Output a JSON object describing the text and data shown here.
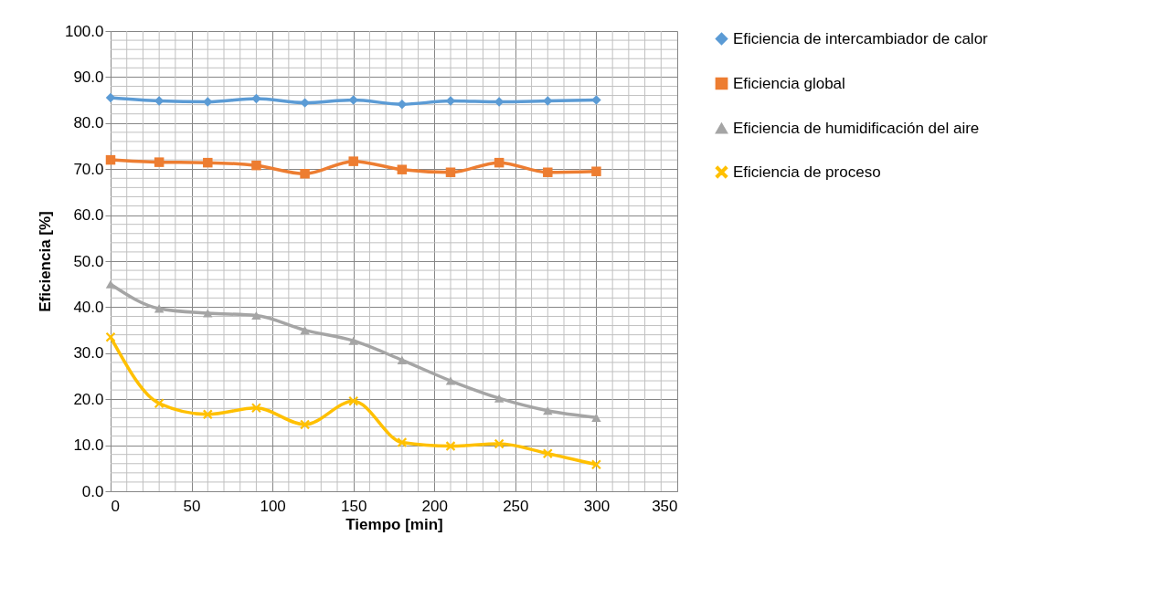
{
  "chart_data": {
    "type": "line",
    "xlabel": "Tiempo [min]",
    "ylabel": "Eficiencia [%]",
    "x": [
      0,
      30,
      60,
      90,
      120,
      150,
      180,
      210,
      240,
      270,
      300
    ],
    "series": [
      {
        "name": "Eficiencia de intercambiador de calor",
        "color": "#5b9bd5",
        "marker": "diamond",
        "values": [
          85.5,
          84.8,
          84.6,
          85.3,
          84.4,
          85.0,
          84.1,
          84.8,
          84.6,
          84.8,
          85.0
        ]
      },
      {
        "name": "Eficiencia global",
        "color": "#ed7d31",
        "marker": "square",
        "values": [
          72.0,
          71.5,
          71.4,
          70.8,
          69.0,
          71.7,
          69.9,
          69.3,
          71.4,
          69.3,
          69.5
        ]
      },
      {
        "name": "Eficiencia de humidificación del aire",
        "color": "#a5a5a5",
        "marker": "triangle",
        "values": [
          45.0,
          39.7,
          38.7,
          38.2,
          35.0,
          32.7,
          28.5,
          24.0,
          20.2,
          17.5,
          16.0
        ]
      },
      {
        "name": "Eficiencia de proceso",
        "color": "#ffc000",
        "marker": "cross",
        "values": [
          33.5,
          19.1,
          16.7,
          18.1,
          14.5,
          19.6,
          10.6,
          9.8,
          10.3,
          8.2,
          5.8
        ]
      }
    ],
    "xlim": [
      0,
      350
    ],
    "xticks": [
      0,
      50,
      100,
      150,
      200,
      250,
      300,
      350
    ],
    "ylim": [
      0,
      100
    ],
    "yticks": [
      {
        "value": 0,
        "label": "0.0"
      },
      {
        "value": 10,
        "label": "10.0"
      },
      {
        "value": 20,
        "label": "20.0"
      },
      {
        "value": 30,
        "label": "30.0"
      },
      {
        "value": 40,
        "label": "40.0"
      },
      {
        "value": 50,
        "label": "50.0"
      },
      {
        "value": 60,
        "label": "60.0"
      },
      {
        "value": 70,
        "label": "70.0"
      },
      {
        "value": 80,
        "label": "80.0"
      },
      {
        "value": 90,
        "label": "90.0"
      },
      {
        "value": 100,
        "label": "100.0"
      }
    ],
    "grid": true,
    "legend": "right",
    "line_style": "solid"
  }
}
